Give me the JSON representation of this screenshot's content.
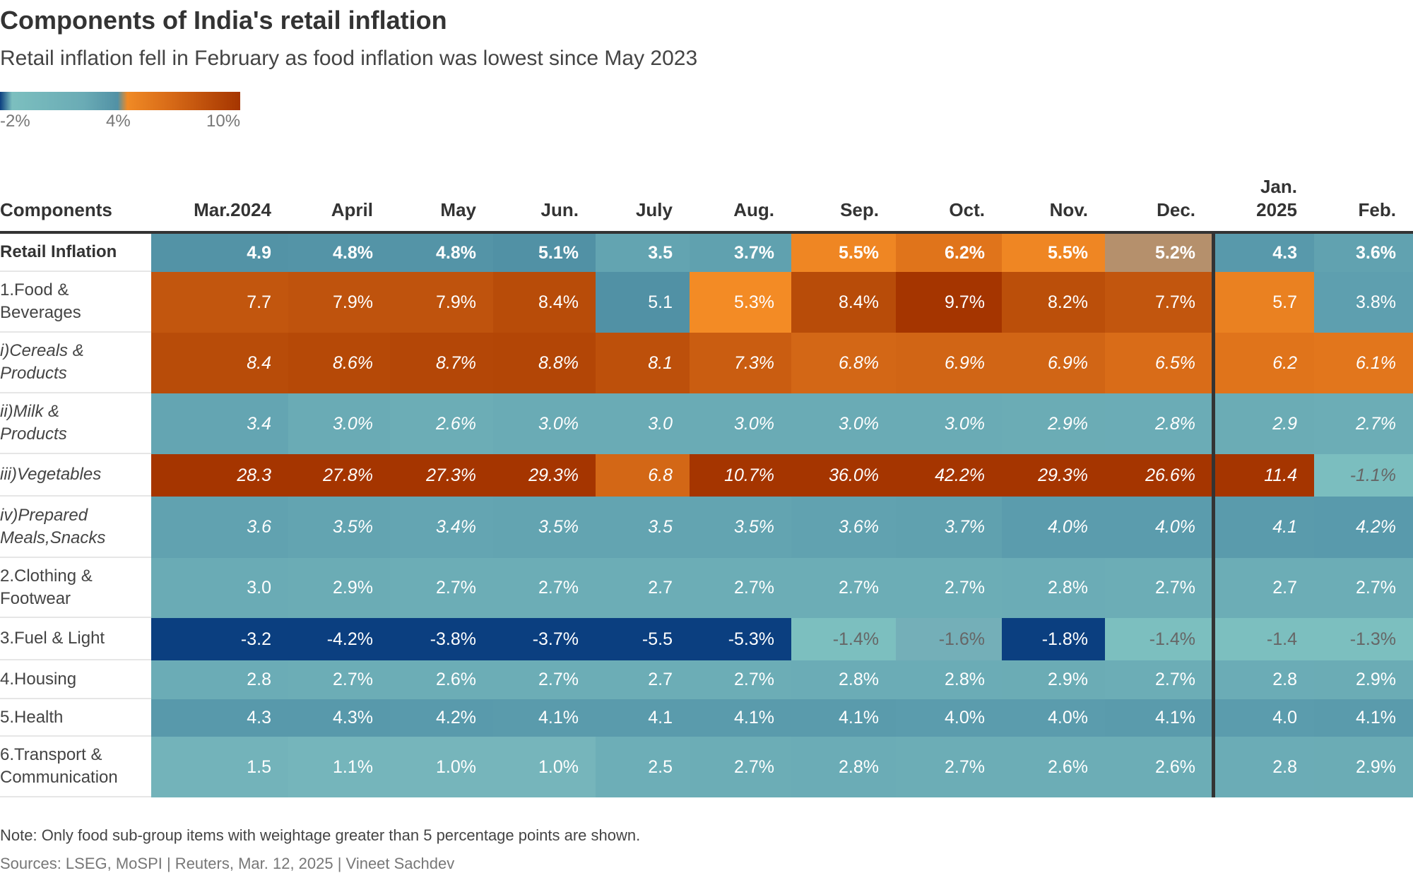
{
  "title": "Components of India's retail inflation",
  "subtitle": "Retail inflation fell in February as food inflation was lowest since May 2023",
  "legend": {
    "labels": [
      "-2%",
      "4%",
      "10%"
    ],
    "colors": [
      "#0b3f80",
      "#7cbfbf",
      "#5191a5",
      "#f08a25",
      "#a53500"
    ]
  },
  "note": "Note: Only food sub-group items with weightage greater than 5 percentage points are shown.",
  "source": "Sources: LSEG, MoSPI | Reuters, Mar. 12, 2025 | Vineet Sachdev",
  "chart_data": {
    "type": "heatmap",
    "title": "Components of India's retail inflation",
    "subtitle": "Retail inflation fell in February as food inflation was lowest since May 2023",
    "row_header": "Components",
    "columns": [
      "Mar.2024",
      "April",
      "May",
      "Jun.",
      "July",
      "Aug.",
      "Sep.",
      "Oct.",
      "Nov.",
      "Dec.",
      "Jan.\n2025",
      "Feb."
    ],
    "color_scale": {
      "min": -2,
      "mid": 4,
      "max": 10,
      "unit": "%"
    },
    "rows": [
      {
        "label": "Retail Inflation",
        "style": "bold",
        "values": [
          "4.9",
          "4.8%",
          "4.8%",
          "5.1%",
          "3.5",
          "3.7%",
          "5.5%",
          "6.2%",
          "5.5%",
          "5.2%",
          "4.3",
          "3.6%"
        ]
      },
      {
        "label": "1.Food &\nBeverages",
        "style": "normal",
        "values": [
          "7.7",
          "7.9%",
          "7.9%",
          "8.4%",
          "5.1",
          "5.3%",
          "8.4%",
          "9.7%",
          "8.2%",
          "7.7%",
          "5.7",
          "3.8%"
        ]
      },
      {
        "label": "i)Cereals &\nProducts",
        "style": "italic",
        "values": [
          "8.4",
          "8.6%",
          "8.7%",
          "8.8%",
          "8.1",
          "7.3%",
          "6.8%",
          "6.9%",
          "6.9%",
          "6.5%",
          "6.2",
          "6.1%"
        ]
      },
      {
        "label": "ii)Milk &\nProducts",
        "style": "italic",
        "values": [
          "3.4",
          "3.0%",
          "2.6%",
          "3.0%",
          "3.0",
          "3.0%",
          "3.0%",
          "3.0%",
          "2.9%",
          "2.8%",
          "2.9",
          "2.7%"
        ]
      },
      {
        "label": "iii)Vegetables",
        "style": "italic",
        "values": [
          "28.3",
          "27.8%",
          "27.3%",
          "29.3%",
          "6.8",
          "10.7%",
          "36.0%",
          "42.2%",
          "29.3%",
          "26.6%",
          "11.4",
          "-1.1%"
        ]
      },
      {
        "label": "iv)Prepared\nMeals,Snacks",
        "style": "italic",
        "values": [
          "3.6",
          "3.5%",
          "3.4%",
          "3.5%",
          "3.5",
          "3.5%",
          "3.6%",
          "3.7%",
          "4.0%",
          "4.0%",
          "4.1",
          "4.2%"
        ]
      },
      {
        "label": "2.Clothing &\nFootwear",
        "style": "normal",
        "values": [
          "3.0",
          "2.9%",
          "2.7%",
          "2.7%",
          "2.7",
          "2.7%",
          "2.7%",
          "2.7%",
          "2.8%",
          "2.7%",
          "2.7",
          "2.7%"
        ]
      },
      {
        "label": "3.Fuel & Light",
        "style": "normal",
        "values": [
          "-3.2",
          "-4.2%",
          "-3.8%",
          "-3.7%",
          "-5.5",
          "-5.3%",
          "-1.4%",
          "-1.6%",
          "-1.8%",
          "-1.4%",
          "-1.4",
          "-1.3%"
        ]
      },
      {
        "label": "4.Housing",
        "style": "normal",
        "values": [
          "2.8",
          "2.7%",
          "2.6%",
          "2.7%",
          "2.7",
          "2.7%",
          "2.8%",
          "2.8%",
          "2.9%",
          "2.7%",
          "2.8",
          "2.9%"
        ]
      },
      {
        "label": "5.Health",
        "style": "normal",
        "values": [
          "4.3",
          "4.3%",
          "4.2%",
          "4.1%",
          "4.1",
          "4.1%",
          "4.1%",
          "4.0%",
          "4.0%",
          "4.1%",
          "4.0",
          "4.1%"
        ]
      },
      {
        "label": "6.Transport &\nCommunication",
        "style": "normal",
        "values": [
          "1.5",
          "1.1%",
          "1.0%",
          "1.0%",
          "2.5",
          "2.7%",
          "2.8%",
          "2.7%",
          "2.6%",
          "2.6%",
          "2.8",
          "2.9%"
        ]
      }
    ]
  }
}
